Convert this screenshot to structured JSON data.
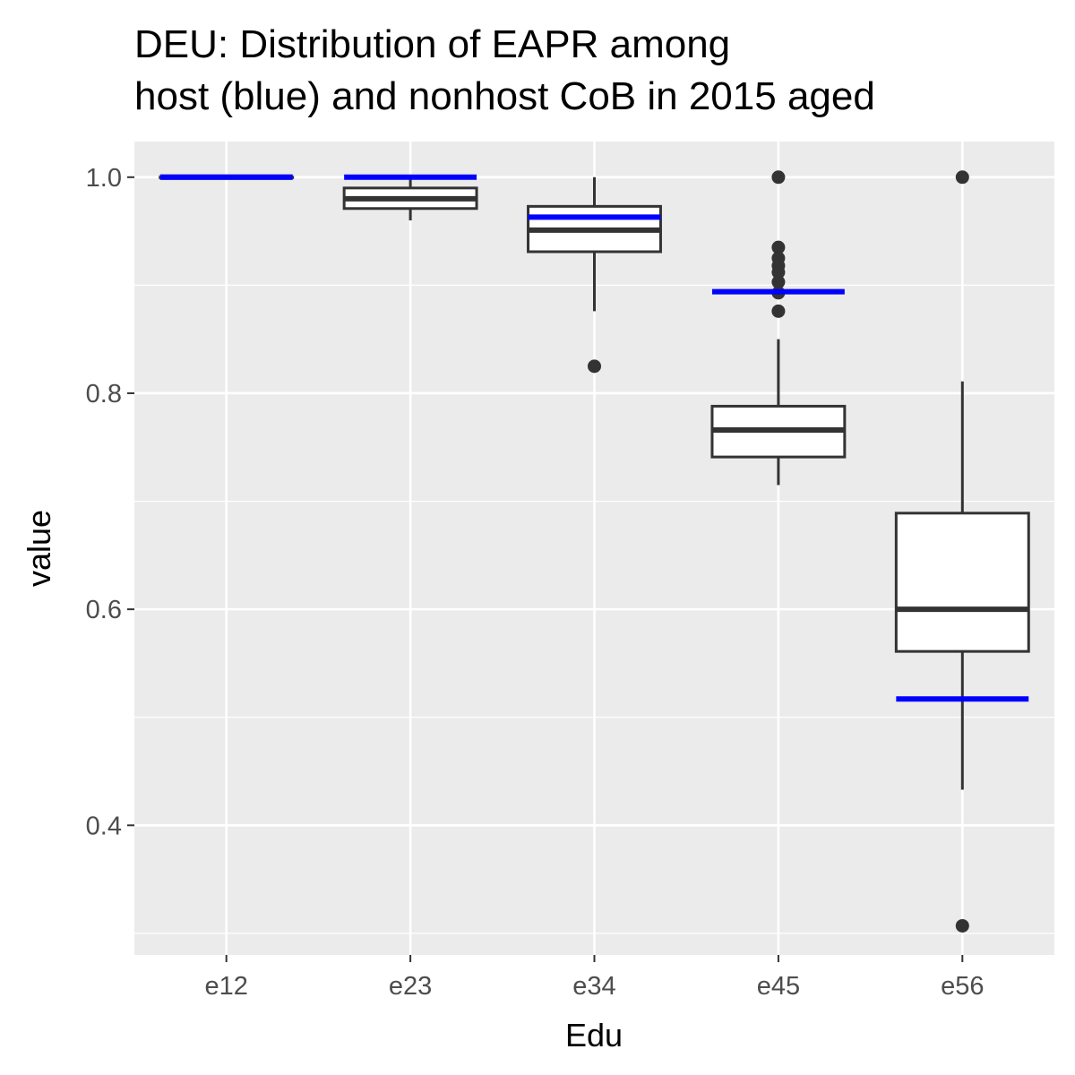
{
  "chart_data": {
    "type": "boxplot",
    "title_lines": [
      "DEU: Distribution of EAPR among",
      "host (blue) and nonhost CoB in 2015 aged"
    ],
    "xlabel": "Edu",
    "ylabel": "value",
    "ylim": [
      0.28,
      1.033
    ],
    "y_ticks": [
      0.4,
      0.6,
      0.8,
      1.0
    ],
    "y_tick_labels": [
      "0.4",
      "0.6",
      "0.8",
      "1.0"
    ],
    "categories": [
      "e12",
      "e23",
      "e34",
      "e45",
      "e56"
    ],
    "background_color": "#ebebeb",
    "box_color": "#333333",
    "host_color": "#0000ff",
    "boxes": [
      {
        "category": "e12",
        "lower_whisker": 1.0,
        "q1": 1.0,
        "median": 1.0,
        "q3": 1.0,
        "upper_whisker": 1.0,
        "outliers": []
      },
      {
        "category": "e23",
        "lower_whisker": 0.96,
        "q1": 0.971,
        "median": 0.98,
        "q3": 0.99,
        "upper_whisker": 1.0,
        "outliers": []
      },
      {
        "category": "e34",
        "lower_whisker": 0.876,
        "q1": 0.931,
        "median": 0.951,
        "q3": 0.973,
        "upper_whisker": 1.0,
        "outliers": [
          0.825
        ]
      },
      {
        "category": "e45",
        "lower_whisker": 0.715,
        "q1": 0.741,
        "median": 0.766,
        "q3": 0.788,
        "upper_whisker": 0.85,
        "outliers": [
          1.0,
          0.935,
          0.925,
          0.918,
          0.912,
          0.903,
          0.893,
          0.876
        ]
      },
      {
        "category": "e56",
        "lower_whisker": 0.433,
        "q1": 0.561,
        "median": 0.6,
        "q3": 0.689,
        "upper_whisker": 0.811,
        "outliers": [
          1.0,
          0.307
        ]
      }
    ],
    "host_values": [
      1.0,
      1.0,
      0.963,
      0.894,
      0.517
    ]
  }
}
